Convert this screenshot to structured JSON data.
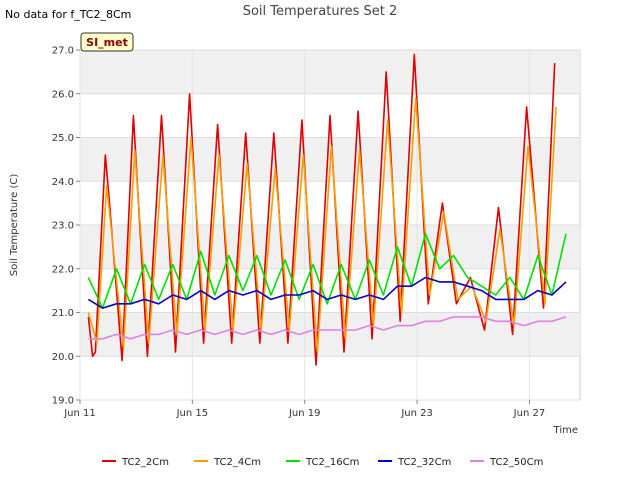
{
  "chart_data": {
    "type": "line",
    "title": "Soil Temperatures Set 2",
    "no_data_note": "No data for f_TC2_8Cm",
    "site_badge": "SI_met",
    "xlabel": "Time",
    "ylabel": "Soil Temperature (C)",
    "ylim": [
      19.0,
      27.0
    ],
    "yticks": [
      "19.0",
      "20.0",
      "21.0",
      "22.0",
      "23.0",
      "24.0",
      "25.0",
      "26.0",
      "27.0"
    ],
    "xlim": [
      11,
      28.8
    ],
    "xticks": [
      {
        "label": "Jun 11",
        "value": 11
      },
      {
        "label": "Jun 15",
        "value": 15
      },
      {
        "label": "Jun 19",
        "value": 19
      },
      {
        "label": "Jun 23",
        "value": 23
      },
      {
        "label": "Jun 27",
        "value": 27
      }
    ],
    "grid": true,
    "banded_background": true,
    "legend_position": "bottom",
    "series": [
      {
        "name": "TC2_2Cm",
        "color": "#e00000",
        "x": [
          11.3,
          11.45,
          11.55,
          11.9,
          12.05,
          12.5,
          12.9,
          13.4,
          13.9,
          14.4,
          14.9,
          15.4,
          15.9,
          16.4,
          16.9,
          17.4,
          17.9,
          18.4,
          18.9,
          19.4,
          19.9,
          20.4,
          20.9,
          21.4,
          21.9,
          22.4,
          22.9,
          23.4,
          23.9,
          24.4,
          24.9,
          25.4,
          25.9,
          26.4,
          26.9,
          27.5,
          27.9
        ],
        "y": [
          20.9,
          20.0,
          20.1,
          24.6,
          23.5,
          19.9,
          25.5,
          20.0,
          25.5,
          20.1,
          26.0,
          20.3,
          25.3,
          20.3,
          25.1,
          20.3,
          25.1,
          20.3,
          25.4,
          19.8,
          25.5,
          20.1,
          25.6,
          20.4,
          26.5,
          20.8,
          26.9,
          21.2,
          23.5,
          21.2,
          21.8,
          20.6,
          23.4,
          20.5,
          25.7,
          21.1,
          26.7
        ]
      },
      {
        "name": "TC2_4Cm",
        "color": "#f5a000",
        "x": [
          11.3,
          11.6,
          11.95,
          12.55,
          12.95,
          13.45,
          13.95,
          14.45,
          14.95,
          15.45,
          15.95,
          16.45,
          16.95,
          17.45,
          17.95,
          18.45,
          18.95,
          19.45,
          19.95,
          20.45,
          20.95,
          21.45,
          21.95,
          22.45,
          22.95,
          23.45,
          23.95,
          24.45,
          24.95,
          25.45,
          25.95,
          26.45,
          26.95,
          27.55,
          27.95
        ],
        "y": [
          21.0,
          20.3,
          23.9,
          20.2,
          24.7,
          20.3,
          24.6,
          20.5,
          25.0,
          20.6,
          24.6,
          20.6,
          24.4,
          20.6,
          24.3,
          20.6,
          24.6,
          20.1,
          24.8,
          20.4,
          24.7,
          20.7,
          25.4,
          21.0,
          25.9,
          21.4,
          23.3,
          21.3,
          21.6,
          20.8,
          22.9,
          20.7,
          24.8,
          21.2,
          25.7
        ]
      },
      {
        "name": "TC2_16Cm",
        "color": "#00e000",
        "x": [
          11.3,
          11.8,
          12.3,
          12.8,
          13.3,
          13.8,
          14.3,
          14.8,
          15.3,
          15.8,
          16.3,
          16.8,
          17.3,
          17.8,
          18.3,
          18.8,
          19.3,
          19.8,
          20.3,
          20.8,
          21.3,
          21.8,
          22.3,
          22.8,
          23.3,
          23.8,
          24.3,
          24.8,
          25.3,
          25.8,
          26.3,
          26.8,
          27.3,
          27.8,
          28.3
        ],
        "y": [
          21.8,
          21.1,
          22.0,
          21.2,
          22.1,
          21.3,
          22.1,
          21.3,
          22.4,
          21.4,
          22.3,
          21.5,
          22.3,
          21.4,
          22.2,
          21.3,
          22.1,
          21.2,
          22.1,
          21.3,
          22.2,
          21.4,
          22.5,
          21.6,
          22.8,
          22.0,
          22.3,
          21.8,
          21.6,
          21.4,
          21.8,
          21.3,
          22.3,
          21.4,
          22.8
        ]
      },
      {
        "name": "TC2_32Cm",
        "color": "#0000cc",
        "x": [
          11.3,
          11.8,
          12.3,
          12.8,
          13.3,
          13.8,
          14.3,
          14.8,
          15.3,
          15.8,
          16.3,
          16.8,
          17.3,
          17.8,
          18.3,
          18.8,
          19.3,
          19.8,
          20.3,
          20.8,
          21.3,
          21.8,
          22.3,
          22.8,
          23.3,
          23.8,
          24.3,
          24.8,
          25.3,
          25.8,
          26.3,
          26.8,
          27.3,
          27.8,
          28.3
        ],
        "y": [
          21.3,
          21.1,
          21.2,
          21.2,
          21.3,
          21.2,
          21.4,
          21.3,
          21.5,
          21.3,
          21.5,
          21.4,
          21.5,
          21.3,
          21.4,
          21.4,
          21.5,
          21.3,
          21.4,
          21.3,
          21.4,
          21.3,
          21.6,
          21.6,
          21.8,
          21.7,
          21.7,
          21.6,
          21.5,
          21.3,
          21.3,
          21.3,
          21.5,
          21.4,
          21.7
        ]
      },
      {
        "name": "TC2_50Cm",
        "color": "#e080e0",
        "x": [
          11.3,
          11.8,
          12.3,
          12.8,
          13.3,
          13.8,
          14.3,
          14.8,
          15.3,
          15.8,
          16.3,
          16.8,
          17.3,
          17.8,
          18.3,
          18.8,
          19.3,
          19.8,
          20.3,
          20.8,
          21.3,
          21.8,
          22.3,
          22.8,
          23.3,
          23.8,
          24.3,
          24.8,
          25.3,
          25.8,
          26.3,
          26.8,
          27.3,
          27.8,
          28.3
        ],
        "y": [
          20.4,
          20.4,
          20.5,
          20.4,
          20.5,
          20.5,
          20.6,
          20.5,
          20.6,
          20.5,
          20.6,
          20.5,
          20.6,
          20.5,
          20.6,
          20.5,
          20.6,
          20.6,
          20.6,
          20.6,
          20.7,
          20.6,
          20.7,
          20.7,
          20.8,
          20.8,
          20.9,
          20.9,
          20.9,
          20.8,
          20.8,
          20.7,
          20.8,
          20.8,
          20.9
        ]
      }
    ]
  }
}
